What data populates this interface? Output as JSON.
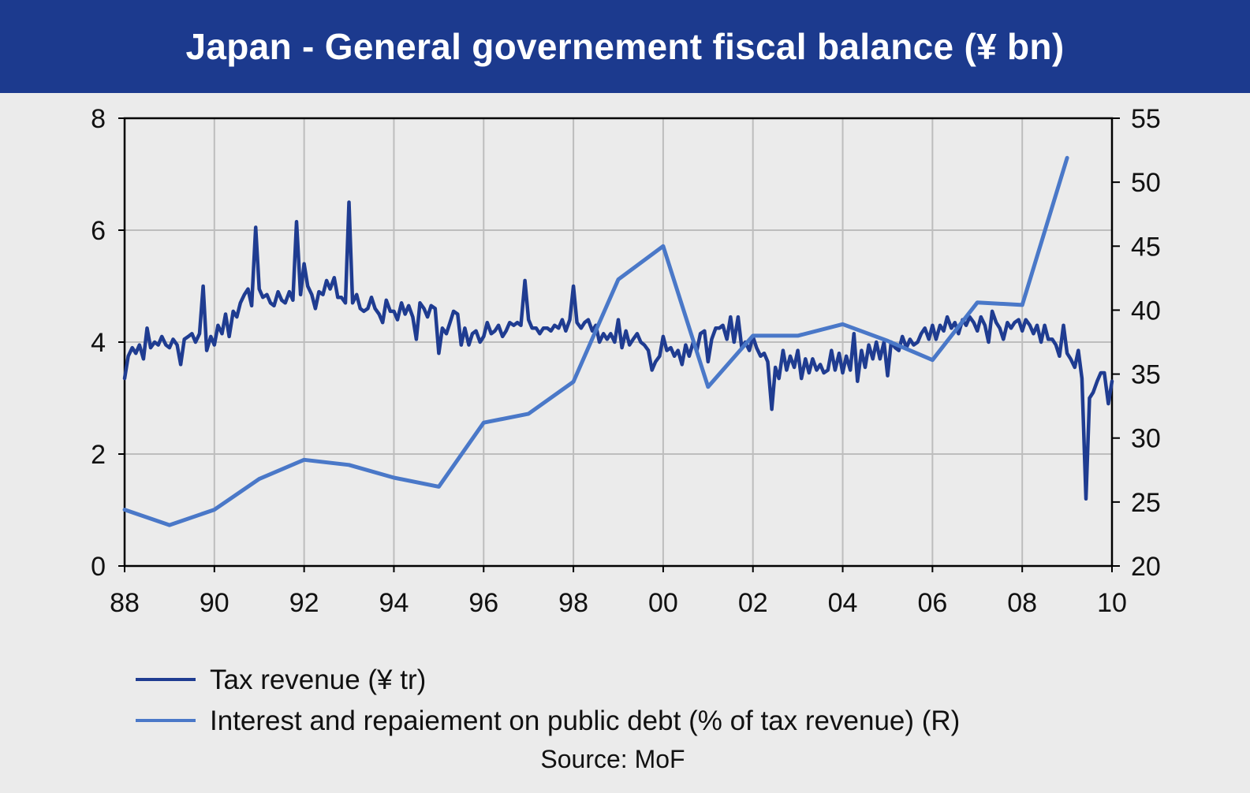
{
  "title": "Japan - General governement fiscal balance (¥ bn)",
  "source": "Source: MoF",
  "colors": {
    "header_bg": "#1c3a8e",
    "tax_revenue": "#1f3c91",
    "interest_share": "#4a78c8",
    "grid": "#bdbdbd",
    "background": "#ebebeb"
  },
  "chart_data": {
    "type": "line",
    "title": "Japan - General governement fiscal balance (¥ bn)",
    "x_axis": {
      "ticks": [
        "88",
        "90",
        "92",
        "94",
        "96",
        "98",
        "00",
        "02",
        "04",
        "06",
        "08",
        "10"
      ],
      "range": [
        1988,
        2010
      ]
    },
    "y_left": {
      "ticks": [
        "0",
        "2",
        "4",
        "6",
        "8"
      ],
      "range": [
        0,
        8
      ]
    },
    "y_right": {
      "ticks": [
        "20",
        "25",
        "30",
        "35",
        "40",
        "45",
        "50",
        "55"
      ],
      "range": [
        20,
        55
      ]
    },
    "grid": true,
    "legend_position": "bottom",
    "series": [
      {
        "name": "Tax revenue (¥ tr)",
        "axis": "left",
        "note": "monthly data, approximate",
        "points": [
          [
            1988.0,
            3.35
          ],
          [
            1988.08,
            3.75
          ],
          [
            1988.17,
            3.9
          ],
          [
            1988.25,
            3.8
          ],
          [
            1988.33,
            3.95
          ],
          [
            1988.42,
            3.7
          ],
          [
            1988.5,
            4.25
          ],
          [
            1988.58,
            3.9
          ],
          [
            1988.67,
            4.0
          ],
          [
            1988.75,
            3.95
          ],
          [
            1988.83,
            4.1
          ],
          [
            1988.92,
            3.95
          ],
          [
            1989.0,
            3.9
          ],
          [
            1989.08,
            4.05
          ],
          [
            1989.17,
            3.95
          ],
          [
            1989.25,
            3.6
          ],
          [
            1989.33,
            4.05
          ],
          [
            1989.42,
            4.1
          ],
          [
            1989.5,
            4.15
          ],
          [
            1989.58,
            4.0
          ],
          [
            1989.67,
            4.15
          ],
          [
            1989.75,
            5.0
          ],
          [
            1989.83,
            3.85
          ],
          [
            1989.92,
            4.1
          ],
          [
            1990.0,
            3.95
          ],
          [
            1990.08,
            4.3
          ],
          [
            1990.17,
            4.15
          ],
          [
            1990.25,
            4.5
          ],
          [
            1990.33,
            4.1
          ],
          [
            1990.42,
            4.55
          ],
          [
            1990.5,
            4.45
          ],
          [
            1990.58,
            4.7
          ],
          [
            1990.67,
            4.85
          ],
          [
            1990.75,
            4.95
          ],
          [
            1990.83,
            4.65
          ],
          [
            1990.92,
            6.05
          ],
          [
            1991.0,
            4.95
          ],
          [
            1991.08,
            4.8
          ],
          [
            1991.17,
            4.85
          ],
          [
            1991.25,
            4.7
          ],
          [
            1991.33,
            4.65
          ],
          [
            1991.42,
            4.9
          ],
          [
            1991.5,
            4.75
          ],
          [
            1991.58,
            4.7
          ],
          [
            1991.67,
            4.9
          ],
          [
            1991.75,
            4.75
          ],
          [
            1991.83,
            6.15
          ],
          [
            1991.92,
            4.85
          ],
          [
            1992.0,
            5.4
          ],
          [
            1992.08,
            5.0
          ],
          [
            1992.17,
            4.85
          ],
          [
            1992.25,
            4.6
          ],
          [
            1992.33,
            4.9
          ],
          [
            1992.42,
            4.85
          ],
          [
            1992.5,
            5.1
          ],
          [
            1992.58,
            4.95
          ],
          [
            1992.67,
            5.15
          ],
          [
            1992.75,
            4.8
          ],
          [
            1992.83,
            4.8
          ],
          [
            1992.92,
            4.7
          ],
          [
            1993.0,
            6.5
          ],
          [
            1993.08,
            4.7
          ],
          [
            1993.17,
            4.85
          ],
          [
            1993.25,
            4.6
          ],
          [
            1993.33,
            4.55
          ],
          [
            1993.42,
            4.6
          ],
          [
            1993.5,
            4.8
          ],
          [
            1993.58,
            4.6
          ],
          [
            1993.67,
            4.5
          ],
          [
            1993.75,
            4.35
          ],
          [
            1993.83,
            4.75
          ],
          [
            1993.92,
            4.55
          ],
          [
            1994.0,
            4.55
          ],
          [
            1994.08,
            4.4
          ],
          [
            1994.17,
            4.7
          ],
          [
            1994.25,
            4.5
          ],
          [
            1994.33,
            4.65
          ],
          [
            1994.42,
            4.45
          ],
          [
            1994.5,
            4.05
          ],
          [
            1994.58,
            4.7
          ],
          [
            1994.67,
            4.6
          ],
          [
            1994.75,
            4.45
          ],
          [
            1994.83,
            4.65
          ],
          [
            1994.92,
            4.6
          ],
          [
            1995.0,
            3.8
          ],
          [
            1995.08,
            4.25
          ],
          [
            1995.17,
            4.15
          ],
          [
            1995.25,
            4.35
          ],
          [
            1995.33,
            4.55
          ],
          [
            1995.42,
            4.5
          ],
          [
            1995.5,
            3.95
          ],
          [
            1995.58,
            4.25
          ],
          [
            1995.67,
            3.95
          ],
          [
            1995.75,
            4.15
          ],
          [
            1995.83,
            4.2
          ],
          [
            1995.92,
            4.0
          ],
          [
            1996.0,
            4.1
          ],
          [
            1996.08,
            4.35
          ],
          [
            1996.17,
            4.15
          ],
          [
            1996.25,
            4.2
          ],
          [
            1996.33,
            4.3
          ],
          [
            1996.42,
            4.1
          ],
          [
            1996.5,
            4.2
          ],
          [
            1996.58,
            4.35
          ],
          [
            1996.67,
            4.3
          ],
          [
            1996.75,
            4.35
          ],
          [
            1996.83,
            4.3
          ],
          [
            1996.92,
            5.1
          ],
          [
            1997.0,
            4.4
          ],
          [
            1997.08,
            4.25
          ],
          [
            1997.17,
            4.25
          ],
          [
            1997.25,
            4.15
          ],
          [
            1997.33,
            4.25
          ],
          [
            1997.42,
            4.25
          ],
          [
            1997.5,
            4.2
          ],
          [
            1997.58,
            4.3
          ],
          [
            1997.67,
            4.25
          ],
          [
            1997.75,
            4.4
          ],
          [
            1997.83,
            4.2
          ],
          [
            1997.92,
            4.4
          ],
          [
            1998.0,
            5.0
          ],
          [
            1998.08,
            4.35
          ],
          [
            1998.17,
            4.25
          ],
          [
            1998.25,
            4.35
          ],
          [
            1998.33,
            4.4
          ],
          [
            1998.42,
            4.2
          ],
          [
            1998.5,
            4.3
          ],
          [
            1998.58,
            4.0
          ],
          [
            1998.67,
            4.15
          ],
          [
            1998.75,
            4.05
          ],
          [
            1998.83,
            4.15
          ],
          [
            1998.92,
            4.0
          ],
          [
            1999.0,
            4.4
          ],
          [
            1999.08,
            3.9
          ],
          [
            1999.17,
            4.2
          ],
          [
            1999.25,
            3.95
          ],
          [
            1999.33,
            4.05
          ],
          [
            1999.42,
            4.15
          ],
          [
            1999.5,
            4.0
          ],
          [
            1999.58,
            3.95
          ],
          [
            1999.67,
            3.85
          ],
          [
            1999.75,
            3.5
          ],
          [
            1999.83,
            3.65
          ],
          [
            1999.92,
            3.75
          ],
          [
            2000.0,
            4.1
          ],
          [
            2000.08,
            3.85
          ],
          [
            2000.17,
            3.9
          ],
          [
            2000.25,
            3.75
          ],
          [
            2000.33,
            3.85
          ],
          [
            2000.42,
            3.6
          ],
          [
            2000.5,
            3.95
          ],
          [
            2000.58,
            3.75
          ],
          [
            2000.67,
            4.0
          ],
          [
            2000.75,
            3.85
          ],
          [
            2000.83,
            4.15
          ],
          [
            2000.92,
            4.2
          ],
          [
            2001.0,
            3.65
          ],
          [
            2001.08,
            4.05
          ],
          [
            2001.17,
            4.25
          ],
          [
            2001.25,
            4.25
          ],
          [
            2001.33,
            4.3
          ],
          [
            2001.42,
            4.05
          ],
          [
            2001.5,
            4.45
          ],
          [
            2001.58,
            4.0
          ],
          [
            2001.67,
            4.45
          ],
          [
            2001.75,
            3.9
          ],
          [
            2001.83,
            4.0
          ],
          [
            2001.92,
            3.85
          ],
          [
            2002.0,
            4.1
          ],
          [
            2002.08,
            3.9
          ],
          [
            2002.17,
            3.75
          ],
          [
            2002.25,
            3.8
          ],
          [
            2002.33,
            3.65
          ],
          [
            2002.42,
            2.8
          ],
          [
            2002.5,
            3.55
          ],
          [
            2002.58,
            3.35
          ],
          [
            2002.67,
            3.85
          ],
          [
            2002.75,
            3.5
          ],
          [
            2002.83,
            3.75
          ],
          [
            2002.92,
            3.55
          ],
          [
            2003.0,
            3.85
          ],
          [
            2003.08,
            3.35
          ],
          [
            2003.17,
            3.7
          ],
          [
            2003.25,
            3.45
          ],
          [
            2003.33,
            3.7
          ],
          [
            2003.42,
            3.5
          ],
          [
            2003.5,
            3.6
          ],
          [
            2003.58,
            3.45
          ],
          [
            2003.67,
            3.5
          ],
          [
            2003.75,
            3.85
          ],
          [
            2003.83,
            3.5
          ],
          [
            2003.92,
            3.8
          ],
          [
            2004.0,
            3.45
          ],
          [
            2004.08,
            3.75
          ],
          [
            2004.17,
            3.5
          ],
          [
            2004.25,
            4.15
          ],
          [
            2004.33,
            3.3
          ],
          [
            2004.42,
            3.85
          ],
          [
            2004.5,
            3.55
          ],
          [
            2004.58,
            3.95
          ],
          [
            2004.67,
            3.7
          ],
          [
            2004.75,
            4.0
          ],
          [
            2004.83,
            3.7
          ],
          [
            2004.92,
            4.0
          ],
          [
            2005.0,
            3.4
          ],
          [
            2005.08,
            4.0
          ],
          [
            2005.17,
            3.9
          ],
          [
            2005.25,
            3.85
          ],
          [
            2005.33,
            4.1
          ],
          [
            2005.42,
            3.9
          ],
          [
            2005.5,
            4.05
          ],
          [
            2005.58,
            3.95
          ],
          [
            2005.67,
            4.0
          ],
          [
            2005.75,
            4.15
          ],
          [
            2005.83,
            4.25
          ],
          [
            2005.92,
            4.05
          ],
          [
            2006.0,
            4.3
          ],
          [
            2006.08,
            4.05
          ],
          [
            2006.17,
            4.3
          ],
          [
            2006.25,
            4.2
          ],
          [
            2006.33,
            4.45
          ],
          [
            2006.42,
            4.25
          ],
          [
            2006.5,
            4.35
          ],
          [
            2006.58,
            4.15
          ],
          [
            2006.67,
            4.4
          ],
          [
            2006.75,
            4.3
          ],
          [
            2006.83,
            4.45
          ],
          [
            2006.92,
            4.35
          ],
          [
            2007.0,
            4.2
          ],
          [
            2007.08,
            4.45
          ],
          [
            2007.17,
            4.3
          ],
          [
            2007.25,
            4.0
          ],
          [
            2007.33,
            4.55
          ],
          [
            2007.42,
            4.35
          ],
          [
            2007.5,
            4.25
          ],
          [
            2007.58,
            4.05
          ],
          [
            2007.67,
            4.35
          ],
          [
            2007.75,
            4.25
          ],
          [
            2007.83,
            4.35
          ],
          [
            2007.92,
            4.4
          ],
          [
            2008.0,
            4.2
          ],
          [
            2008.08,
            4.4
          ],
          [
            2008.17,
            4.3
          ],
          [
            2008.25,
            4.15
          ],
          [
            2008.33,
            4.3
          ],
          [
            2008.42,
            4.0
          ],
          [
            2008.5,
            4.3
          ],
          [
            2008.58,
            4.05
          ],
          [
            2008.67,
            4.05
          ],
          [
            2008.75,
            3.95
          ],
          [
            2008.83,
            3.75
          ],
          [
            2008.92,
            4.3
          ],
          [
            2009.0,
            3.8
          ],
          [
            2009.08,
            3.7
          ],
          [
            2009.17,
            3.55
          ],
          [
            2009.25,
            3.85
          ],
          [
            2009.33,
            3.35
          ],
          [
            2009.42,
            1.2
          ],
          [
            2009.5,
            3.0
          ],
          [
            2009.58,
            3.1
          ],
          [
            2009.67,
            3.3
          ],
          [
            2009.75,
            3.45
          ],
          [
            2009.83,
            3.45
          ],
          [
            2009.92,
            2.9
          ],
          [
            2010.0,
            3.3
          ]
        ]
      },
      {
        "name": "Interest and repaiement on public debt (% of tax revenue) (R)",
        "axis": "right",
        "points": [
          [
            1988,
            24.4
          ],
          [
            1989,
            23.2
          ],
          [
            1990,
            24.4
          ],
          [
            1991,
            26.8
          ],
          [
            1992,
            28.3
          ],
          [
            1993,
            27.9
          ],
          [
            1994,
            26.9
          ],
          [
            1995,
            26.2
          ],
          [
            1996,
            31.2
          ],
          [
            1997,
            31.9
          ],
          [
            1998,
            34.4
          ],
          [
            1999,
            42.4
          ],
          [
            2000,
            45.0
          ],
          [
            2001,
            34.0
          ],
          [
            2002,
            38.0
          ],
          [
            2003,
            38.0
          ],
          [
            2004,
            38.9
          ],
          [
            2005,
            37.6
          ],
          [
            2006,
            36.1
          ],
          [
            2007,
            40.6
          ],
          [
            2008,
            40.4
          ],
          [
            2009,
            51.9
          ]
        ]
      }
    ]
  },
  "legend": [
    {
      "label": "Tax revenue (¥ tr)",
      "color": "#1f3c91"
    },
    {
      "label": "Interest and repaiement on public debt (% of tax revenue) (R)",
      "color": "#4a78c8"
    }
  ]
}
